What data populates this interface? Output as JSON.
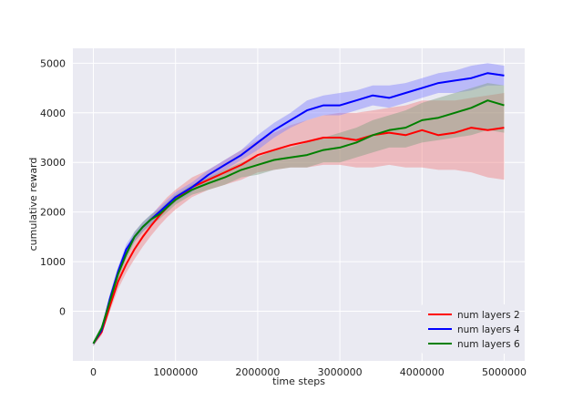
{
  "chart_data": {
    "type": "line",
    "title": "",
    "xlabel": "time steps",
    "ylabel": "cumulative reward",
    "xlim": [
      -250000,
      5250000
    ],
    "ylim": [
      -1000,
      5300
    ],
    "xticks": [
      0,
      1000000,
      2000000,
      3000000,
      4000000,
      5000000
    ],
    "xtick_labels": [
      "0",
      "1000000",
      "2000000",
      "3000000",
      "4000000",
      "5000000"
    ],
    "yticks": [
      0,
      1000,
      2000,
      3000,
      4000,
      5000
    ],
    "ytick_labels": [
      "0",
      "1000",
      "2000",
      "3000",
      "4000",
      "5000"
    ],
    "grid": true,
    "legend_position": "bottom-right",
    "x": [
      0,
      100000,
      200000,
      300000,
      400000,
      500000,
      600000,
      700000,
      800000,
      900000,
      1000000,
      1200000,
      1400000,
      1600000,
      1800000,
      2000000,
      2200000,
      2400000,
      2600000,
      2800000,
      3000000,
      3200000,
      3400000,
      3600000,
      3800000,
      4000000,
      4200000,
      4400000,
      4600000,
      4800000,
      5000000
    ],
    "series": [
      {
        "name": "num layers 2",
        "color": "#ff0000",
        "fill": "#f08080",
        "values": [
          -650,
          -420,
          100,
          600,
          950,
          1250,
          1500,
          1720,
          1920,
          2100,
          2250,
          2500,
          2650,
          2800,
          2950,
          3150,
          3250,
          3350,
          3420,
          3500,
          3500,
          3450,
          3550,
          3600,
          3550,
          3650,
          3550,
          3600,
          3700,
          3650,
          3700
        ],
        "lower": [
          -700,
          -480,
          0,
          450,
          780,
          1050,
          1300,
          1520,
          1720,
          1900,
          2050,
          2300,
          2450,
          2550,
          2650,
          2800,
          2850,
          2900,
          2900,
          2950,
          2950,
          2900,
          2900,
          2950,
          2900,
          2900,
          2850,
          2850,
          2800,
          2700,
          2650
        ],
        "upper": [
          -600,
          -360,
          200,
          750,
          1100,
          1450,
          1700,
          1920,
          2120,
          2300,
          2450,
          2700,
          2850,
          3050,
          3250,
          3450,
          3600,
          3750,
          3850,
          3950,
          4000,
          4000,
          4050,
          4100,
          4150,
          4250,
          4250,
          4250,
          4300,
          4350,
          4400
        ]
      },
      {
        "name": "num layers 4",
        "color": "#0000ff",
        "fill": "#8080ff",
        "values": [
          -650,
          -380,
          250,
          800,
          1250,
          1500,
          1700,
          1850,
          2000,
          2150,
          2300,
          2500,
          2750,
          2950,
          3150,
          3400,
          3650,
          3850,
          4050,
          4150,
          4150,
          4250,
          4350,
          4300,
          4400,
          4500,
          4600,
          4650,
          4700,
          4800,
          4750
        ],
        "lower": [
          -700,
          -440,
          150,
          700,
          1150,
          1400,
          1600,
          1750,
          1900,
          2050,
          2200,
          2400,
          2650,
          2850,
          3050,
          3250,
          3500,
          3700,
          3850,
          3950,
          3950,
          4050,
          4150,
          4100,
          4200,
          4300,
          4400,
          4400,
          4450,
          4550,
          4550
        ],
        "upper": [
          -600,
          -320,
          350,
          900,
          1350,
          1600,
          1800,
          1950,
          2100,
          2250,
          2400,
          2600,
          2850,
          3050,
          3250,
          3550,
          3800,
          4000,
          4250,
          4350,
          4400,
          4450,
          4550,
          4550,
          4600,
          4700,
          4800,
          4850,
          4950,
          5000,
          4950
        ]
      },
      {
        "name": "num layers 6",
        "color": "#008000",
        "fill": "#80a080",
        "values": [
          -650,
          -340,
          200,
          750,
          1150,
          1500,
          1700,
          1850,
          1950,
          2100,
          2250,
          2450,
          2580,
          2700,
          2850,
          2950,
          3050,
          3100,
          3150,
          3250,
          3300,
          3400,
          3550,
          3650,
          3700,
          3850,
          3900,
          4000,
          4100,
          4250,
          4150
        ],
        "lower": [
          -700,
          -400,
          100,
          650,
          1050,
          1400,
          1600,
          1750,
          1850,
          2000,
          2150,
          2350,
          2450,
          2550,
          2700,
          2750,
          2850,
          2900,
          2900,
          3000,
          3000,
          3100,
          3200,
          3300,
          3300,
          3400,
          3450,
          3500,
          3550,
          3650,
          3600
        ],
        "upper": [
          -600,
          -280,
          300,
          850,
          1250,
          1600,
          1800,
          1950,
          2050,
          2200,
          2350,
          2550,
          2700,
          2850,
          3000,
          3100,
          3250,
          3300,
          3400,
          3500,
          3600,
          3700,
          3850,
          3950,
          4050,
          4200,
          4300,
          4400,
          4500,
          4600,
          4550
        ]
      }
    ]
  }
}
